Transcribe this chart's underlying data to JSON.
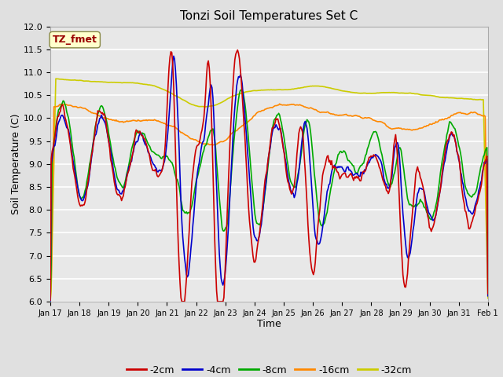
{
  "title": "Tonzi Soil Temperatures Set C",
  "xlabel": "Time",
  "ylabel": "Soil Temperature (C)",
  "ylim": [
    6.0,
    12.0
  ],
  "yticks": [
    6.0,
    6.5,
    7.0,
    7.5,
    8.0,
    8.5,
    9.0,
    9.5,
    10.0,
    10.5,
    11.0,
    11.5,
    12.0
  ],
  "xtick_labels": [
    "Jan 17",
    "Jan 18",
    "Jan 19",
    "Jan 20",
    "Jan 21",
    "Jan 22",
    "Jan 23",
    "Jan 24",
    "Jan 25",
    "Jan 26",
    "Jan 27",
    "Jan 28",
    "Jan 29",
    "Jan 30",
    "Jan 31",
    "Feb 1"
  ],
  "colors": {
    "-2cm": "#cc0000",
    "-4cm": "#0000cc",
    "-8cm": "#00aa00",
    "-16cm": "#ff8800",
    "-32cm": "#cccc00"
  },
  "legend_labels": [
    "-2cm",
    "-4cm",
    "-8cm",
    "-16cm",
    "-32cm"
  ],
  "annotation_text": "TZ_fmet",
  "annotation_bg": "#ffffcc",
  "annotation_fg": "#990000",
  "fig_bg": "#e0e0e0",
  "plot_bg": "#e8e8e8",
  "grid_color": "#ffffff",
  "n_points": 480
}
